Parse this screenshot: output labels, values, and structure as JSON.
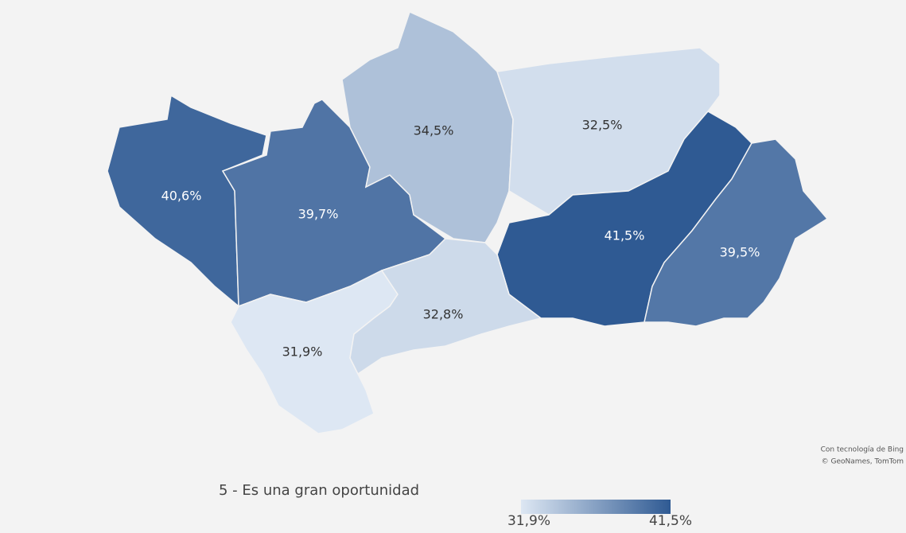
{
  "map": {
    "regions": [
      {
        "value": 40.6,
        "value_label": "40,6%"
      },
      {
        "value": 39.7,
        "value_label": "39,7%"
      },
      {
        "value": 34.5,
        "value_label": "34,5%"
      },
      {
        "value": 32.5,
        "value_label": "32,5%"
      },
      {
        "value": 41.5,
        "value_label": "41,5%"
      },
      {
        "value": 39.5,
        "value_label": "39,5%"
      },
      {
        "value": 31.9,
        "value_label": "31,9%"
      },
      {
        "value": 32.8,
        "value_label": "32,8%"
      }
    ],
    "legend": {
      "title": "5 - Es una gran oportunidad",
      "min": {
        "value": 31.9,
        "label": "31,9%"
      },
      "max": {
        "value": 41.5,
        "label": "41,5%"
      },
      "min_color": "#dde7f3",
      "max_color": "#2f5a93"
    },
    "attribution": [
      "Con tecnología de Bing",
      "© GeoNames, TomTom"
    ]
  }
}
